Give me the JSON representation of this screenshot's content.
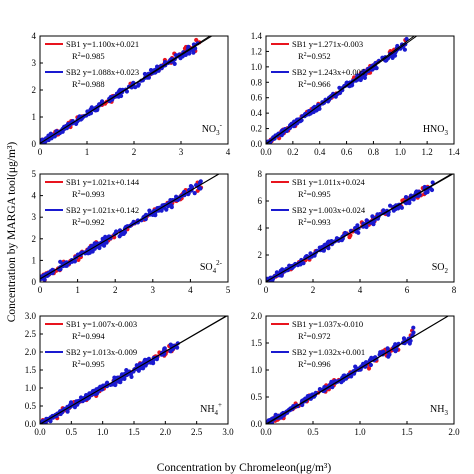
{
  "figure": {
    "ylabel": "Concentration by MARGA tool(μg/m³)",
    "xlabel": "Concentration by Chromeleon(μg/m³)"
  },
  "colors": {
    "SB1": "#e8141e",
    "SB2": "#1a1ad0",
    "line": "#000000"
  },
  "chart_data": [
    {
      "type": "scatter",
      "species": "NO3",
      "species_sup": "-",
      "species_sub": "3",
      "xlim": [
        0,
        4
      ],
      "ylim": [
        0,
        4
      ],
      "xticks": [
        "0",
        "1",
        "2",
        "3",
        "4"
      ],
      "yticks": [
        "0",
        "1",
        "2",
        "3",
        "4"
      ],
      "series": [
        {
          "name": "SB1",
          "equation": "y=1.100x+0.021",
          "r2": "0.985",
          "slope": 1.1,
          "intercept": 0.021
        },
        {
          "name": "SB2",
          "equation": "y=1.088x+0.023",
          "r2": "0.988",
          "slope": 1.088,
          "intercept": 0.023
        }
      ],
      "data_range": [
        0,
        3.4
      ]
    },
    {
      "type": "scatter",
      "species": "HNO3",
      "species_sup": "",
      "species_sub": "3",
      "xlim": [
        0,
        1.4
      ],
      "ylim": [
        0,
        1.4
      ],
      "xticks": [
        "0.0",
        "0.2",
        "0.4",
        "0.6",
        "0.8",
        "1.0",
        "1.2",
        "1.4"
      ],
      "yticks": [
        "0.0",
        "0.2",
        "0.4",
        "0.6",
        "0.8",
        "1.0",
        "1.2",
        "1.4"
      ],
      "series": [
        {
          "name": "SB1",
          "equation": "y=1.271x-0.003",
          "r2": "0.952",
          "slope": 1.271,
          "intercept": -0.003
        },
        {
          "name": "SB2",
          "equation": "y=1.243x+0.005",
          "r2": "0.966",
          "slope": 1.243,
          "intercept": 0.005
        }
      ],
      "data_range": [
        0,
        1.05
      ]
    },
    {
      "type": "scatter",
      "species": "SO4",
      "species_sup": "2-",
      "species_sub": "4",
      "xlim": [
        0,
        5
      ],
      "ylim": [
        0,
        5
      ],
      "xticks": [
        "0",
        "1",
        "2",
        "3",
        "4",
        "5"
      ],
      "yticks": [
        "0",
        "1",
        "2",
        "3",
        "4",
        "5"
      ],
      "series": [
        {
          "name": "SB1",
          "equation": "y=1.021x+0.144",
          "r2": "0.993",
          "slope": 1.021,
          "intercept": 0.144
        },
        {
          "name": "SB2",
          "equation": "y=1.021x+0.142",
          "r2": "0.992",
          "slope": 1.021,
          "intercept": 0.142
        }
      ],
      "data_range": [
        0,
        4.3
      ]
    },
    {
      "type": "scatter",
      "species": "SO2",
      "species_sup": "",
      "species_sub": "2",
      "xlim": [
        0,
        8
      ],
      "ylim": [
        0,
        8
      ],
      "xticks": [
        "0",
        "2",
        "4",
        "6",
        "8"
      ],
      "yticks": [
        "0",
        "2",
        "4",
        "6",
        "8"
      ],
      "series": [
        {
          "name": "SB1",
          "equation": "y=1.011x+0.024",
          "r2": "0.995",
          "slope": 1.011,
          "intercept": 0.024
        },
        {
          "name": "SB2",
          "equation": "y=1.003x+0.024",
          "r2": "0.993",
          "slope": 1.003,
          "intercept": 0.024
        }
      ],
      "data_range": [
        0,
        7.1
      ]
    },
    {
      "type": "scatter",
      "species": "NH4",
      "species_sup": "+",
      "species_sub": "4",
      "xlim": [
        0,
        3.0
      ],
      "ylim": [
        0,
        3.0
      ],
      "xticks": [
        "0.0",
        "0.5",
        "1.0",
        "1.5",
        "2.0",
        "2.5",
        "3.0"
      ],
      "yticks": [
        "0.0",
        "0.5",
        "1.0",
        "1.5",
        "2.0",
        "2.5",
        "3.0"
      ],
      "series": [
        {
          "name": "SB1",
          "equation": "y=1.007x-0.003",
          "r2": "0.994",
          "slope": 1.007,
          "intercept": -0.003
        },
        {
          "name": "SB2",
          "equation": "y=1.013x-0.009",
          "r2": "0.995",
          "slope": 1.013,
          "intercept": -0.009
        }
      ],
      "data_range": [
        0,
        2.2
      ]
    },
    {
      "type": "scatter",
      "species": "NH3",
      "species_sup": "",
      "species_sub": "3",
      "xlim": [
        0,
        2.0
      ],
      "ylim": [
        0,
        2.0
      ],
      "xticks": [
        "0.0",
        "0.5",
        "1.0",
        "1.5",
        "2.0"
      ],
      "yticks": [
        "0.0",
        "0.5",
        "1.0",
        "1.5",
        "2.0"
      ],
      "series": [
        {
          "name": "SB1",
          "equation": "y=1.037x-0.010",
          "r2": "0.972",
          "slope": 1.037,
          "intercept": -0.01
        },
        {
          "name": "SB2",
          "equation": "y=1.032x+0.001",
          "r2": "0.996",
          "slope": 1.032,
          "intercept": 0.001
        }
      ],
      "data_range": [
        0,
        1.6
      ]
    }
  ]
}
